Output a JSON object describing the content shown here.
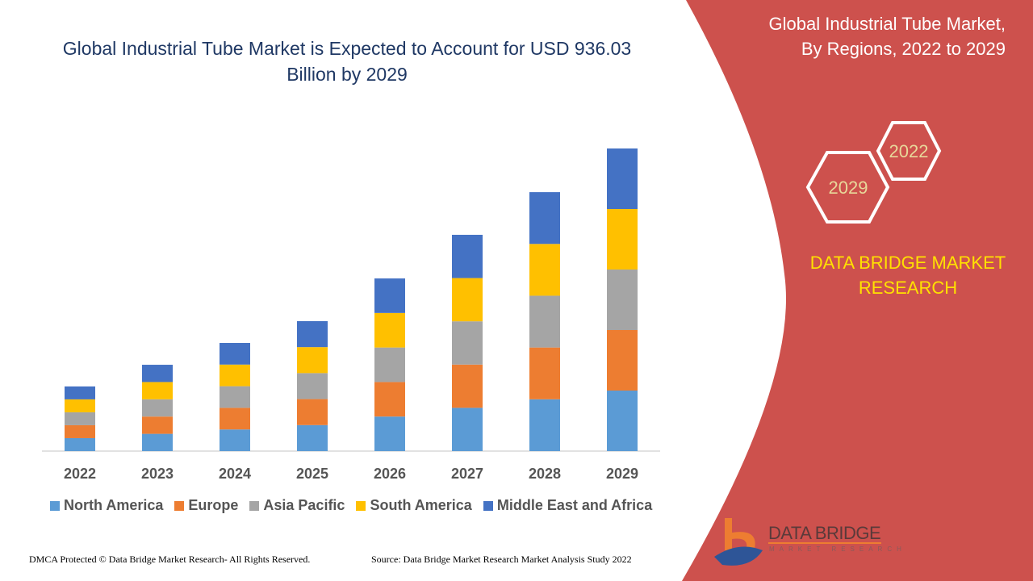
{
  "title": "Global Industrial Tube Market is Expected to Account for USD 936.03 Billion by 2029",
  "side_panel": {
    "title_line1": "Global Industrial Tube Market,",
    "title_line2": "By Regions, 2022 to 2029",
    "hex_start": "2022",
    "hex_end": "2029",
    "brand_line1": "DATA BRIDGE MARKET",
    "brand_line2": "RESEARCH",
    "logo_text": "DATA BRIDGE",
    "logo_sub": "MARKET RESEARCH",
    "color": "#CD514D"
  },
  "footer": {
    "left": "DMCA Protected © Data Bridge Market Research- All Rights Reserved.",
    "right": "Source: Data Bridge Market Research Market Analysis Study 2022"
  },
  "chart_data": {
    "type": "bar",
    "stacked": true,
    "title": "Global Industrial Tube Market is Expected to Account for USD 936.03 Billion by 2029",
    "unit": "USD Billion (estimated)",
    "categories": [
      "2022",
      "2023",
      "2024",
      "2025",
      "2026",
      "2027",
      "2028",
      "2029"
    ],
    "series": [
      {
        "name": "North America",
        "color": "#5B9BD5",
        "values": [
          40,
          53.4,
          66.9,
          80.4,
          106.8,
          133.8,
          160.2,
          187.2
        ]
      },
      {
        "name": "Europe",
        "color": "#ED7D31",
        "values": [
          40,
          53.4,
          66.9,
          80.4,
          106.8,
          133.8,
          160.2,
          187.2
        ]
      },
      {
        "name": "Asia Pacific",
        "color": "#A5A5A5",
        "values": [
          40,
          53.4,
          66.9,
          80.4,
          106.8,
          133.8,
          160.2,
          187.2
        ]
      },
      {
        "name": "South America",
        "color": "#FFC000",
        "values": [
          40,
          53.4,
          66.9,
          80.4,
          106.8,
          133.8,
          160.2,
          187.2
        ]
      },
      {
        "name": "Middle East and Africa",
        "color": "#4472C4",
        "values": [
          40,
          53.4,
          66.9,
          80.4,
          106.8,
          133.8,
          160.2,
          187.2
        ]
      }
    ],
    "ylim": [
      0,
      936.03
    ],
    "y_axis_shown": false,
    "grid": false,
    "legend_position": "bottom"
  }
}
